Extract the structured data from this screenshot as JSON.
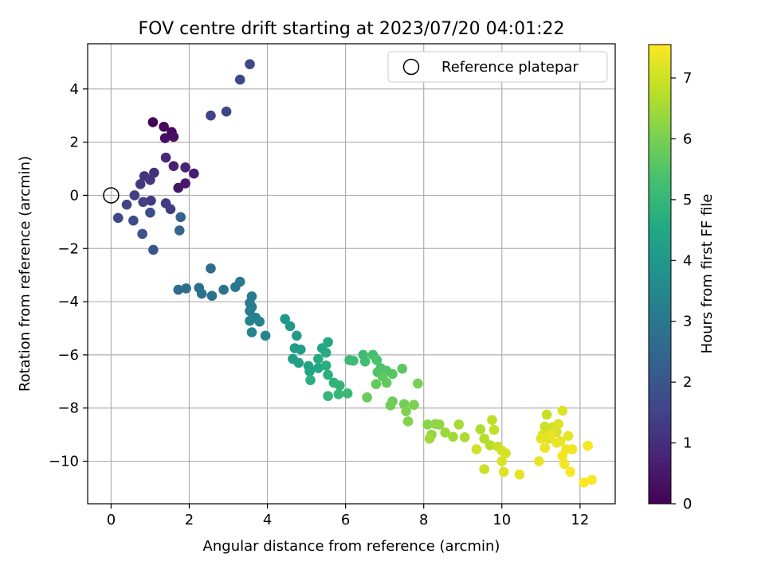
{
  "chart_data": {
    "type": "scatter",
    "title": "FOV centre drift starting at 2023/07/20 04:01:22",
    "xlabel": "Angular distance from reference (arcmin)",
    "ylabel": "Rotation from reference (arcmin)",
    "xlim": [
      -0.6,
      12.9
    ],
    "ylim": [
      -11.6,
      5.7
    ],
    "xticks": [
      0,
      2,
      4,
      6,
      8,
      10,
      12
    ],
    "yticks": [
      4,
      2,
      0,
      -2,
      -4,
      -6,
      -8,
      -10
    ],
    "xtick_labels": [
      "0",
      "2",
      "4",
      "6",
      "8",
      "10",
      "12"
    ],
    "ytick_labels": [
      "4",
      "2",
      "0",
      "−2",
      "−4",
      "−6",
      "−8",
      "−10"
    ],
    "grid": true,
    "legend": {
      "position": "top-right",
      "entries": [
        {
          "label": "Reference platepar",
          "marker": "open-circle",
          "x": 0,
          "y": 0
        }
      ]
    },
    "colorbar": {
      "label": "Hours from first FF file",
      "colormap": "viridis",
      "range": [
        0,
        7.55
      ],
      "ticks": [
        0,
        1,
        2,
        3,
        4,
        5,
        6,
        7
      ],
      "tick_labels": [
        "0",
        "1",
        "2",
        "3",
        "4",
        "5",
        "6",
        "7"
      ]
    },
    "points": [
      [
        1.07,
        2.75,
        0.05
      ],
      [
        1.35,
        2.58,
        0.15
      ],
      [
        1.55,
        2.38,
        0.2
      ],
      [
        1.6,
        2.2,
        0.3
      ],
      [
        1.38,
        2.15,
        0.25
      ],
      [
        1.72,
        0.28,
        0.4
      ],
      [
        1.9,
        0.45,
        0.5
      ],
      [
        2.12,
        0.82,
        0.6
      ],
      [
        1.6,
        1.1,
        0.7
      ],
      [
        1.9,
        1.05,
        0.8
      ],
      [
        1.4,
        1.42,
        0.9
      ],
      [
        1.1,
        0.85,
        1.0
      ],
      [
        0.85,
        0.72,
        1.1
      ],
      [
        1.0,
        0.58,
        1.15
      ],
      [
        0.75,
        0.42,
        1.2
      ],
      [
        1.02,
        -0.2,
        1.25
      ],
      [
        1.4,
        -0.3,
        1.3
      ],
      [
        1.52,
        -0.52,
        1.35
      ],
      [
        0.6,
        0.0,
        1.4
      ],
      [
        0.82,
        -0.25,
        1.45
      ],
      [
        0.4,
        -0.35,
        1.5
      ],
      [
        0.18,
        -0.85,
        1.6
      ],
      [
        0.57,
        -0.95,
        1.7
      ],
      [
        1.0,
        -0.65,
        1.8
      ],
      [
        0.8,
        -1.45,
        1.9
      ],
      [
        1.08,
        -2.05,
        2.0
      ],
      [
        2.55,
        3.0,
        1.5
      ],
      [
        2.95,
        3.15,
        1.55
      ],
      [
        3.3,
        4.35,
        1.6
      ],
      [
        3.55,
        4.93,
        1.65
      ],
      [
        1.78,
        -0.82,
        2.4
      ],
      [
        1.75,
        -1.32,
        2.5
      ],
      [
        2.55,
        -2.75,
        2.6
      ],
      [
        1.72,
        -3.55,
        2.65
      ],
      [
        1.92,
        -3.5,
        2.7
      ],
      [
        2.25,
        -3.48,
        2.75
      ],
      [
        2.32,
        -3.7,
        2.8
      ],
      [
        2.58,
        -3.78,
        2.85
      ],
      [
        2.88,
        -3.55,
        2.9
      ],
      [
        3.18,
        -3.45,
        2.95
      ],
      [
        3.3,
        -3.25,
        3.0
      ],
      [
        3.6,
        -3.8,
        3.05
      ],
      [
        3.55,
        -4.05,
        3.1
      ],
      [
        3.6,
        -4.2,
        3.15
      ],
      [
        3.55,
        -4.35,
        3.2
      ],
      [
        3.7,
        -4.6,
        3.25
      ],
      [
        3.8,
        -4.75,
        3.3
      ],
      [
        3.55,
        -4.72,
        3.35
      ],
      [
        3.6,
        -5.15,
        3.4
      ],
      [
        3.95,
        -5.28,
        3.45
      ],
      [
        4.45,
        -4.65,
        4.0
      ],
      [
        4.58,
        -4.92,
        4.05
      ],
      [
        4.75,
        -5.28,
        4.1
      ],
      [
        4.7,
        -5.75,
        4.15
      ],
      [
        4.85,
        -5.8,
        4.2
      ],
      [
        4.65,
        -6.15,
        4.25
      ],
      [
        4.8,
        -6.3,
        4.3
      ],
      [
        5.05,
        -6.42,
        4.35
      ],
      [
        5.08,
        -6.62,
        4.4
      ],
      [
        5.3,
        -6.5,
        4.45
      ],
      [
        5.4,
        -5.75,
        4.5
      ],
      [
        5.55,
        -5.52,
        4.55
      ],
      [
        5.5,
        -5.92,
        4.6
      ],
      [
        5.3,
        -6.15,
        4.65
      ],
      [
        5.5,
        -6.4,
        4.7
      ],
      [
        5.55,
        -6.75,
        4.75
      ],
      [
        5.1,
        -6.95,
        4.8
      ],
      [
        5.7,
        -7.05,
        4.85
      ],
      [
        5.85,
        -7.15,
        4.9
      ],
      [
        5.55,
        -7.55,
        4.95
      ],
      [
        5.82,
        -7.48,
        5.0
      ],
      [
        6.05,
        -7.45,
        5.05
      ],
      [
        6.1,
        -6.2,
        5.1
      ],
      [
        6.2,
        -6.22,
        5.15
      ],
      [
        6.45,
        -6.0,
        5.2
      ],
      [
        6.5,
        -6.25,
        5.25
      ],
      [
        6.7,
        -6.0,
        5.3
      ],
      [
        6.8,
        -6.2,
        5.35
      ],
      [
        6.9,
        -6.5,
        5.4
      ],
      [
        6.82,
        -6.65,
        5.45
      ],
      [
        7.05,
        -6.6,
        5.5
      ],
      [
        7.2,
        -6.72,
        5.55
      ],
      [
        7.45,
        -6.52,
        5.6
      ],
      [
        6.95,
        -6.82,
        5.65
      ],
      [
        7.05,
        -7.05,
        5.7
      ],
      [
        6.78,
        -7.1,
        5.75
      ],
      [
        6.55,
        -7.6,
        5.8
      ],
      [
        7.2,
        -7.75,
        5.85
      ],
      [
        7.15,
        -7.9,
        5.9
      ],
      [
        7.5,
        -7.85,
        5.95
      ],
      [
        7.85,
        -7.08,
        6.0
      ],
      [
        7.75,
        -7.88,
        6.05
      ],
      [
        7.55,
        -8.12,
        6.1
      ],
      [
        7.6,
        -8.5,
        6.15
      ],
      [
        8.1,
        -8.62,
        6.2
      ],
      [
        8.3,
        -8.6,
        6.25
      ],
      [
        8.4,
        -8.62,
        6.3
      ],
      [
        8.2,
        -9.0,
        6.35
      ],
      [
        8.55,
        -8.92,
        6.4
      ],
      [
        8.15,
        -9.15,
        6.45
      ],
      [
        8.75,
        -9.08,
        6.5
      ],
      [
        8.9,
        -8.62,
        6.55
      ],
      [
        9.05,
        -9.1,
        6.6
      ],
      [
        9.45,
        -8.8,
        6.65
      ],
      [
        9.55,
        -9.15,
        6.7
      ],
      [
        9.7,
        -9.4,
        6.75
      ],
      [
        9.75,
        -8.45,
        6.8
      ],
      [
        9.8,
        -8.82,
        6.85
      ],
      [
        9.9,
        -9.45,
        6.9
      ],
      [
        9.55,
        -10.3,
        6.95
      ],
      [
        9.35,
        -9.55,
        7.0
      ],
      [
        10.0,
        -9.6,
        7.05
      ],
      [
        10.1,
        -9.7,
        7.1
      ],
      [
        10.0,
        -10.0,
        7.15
      ],
      [
        10.05,
        -10.4,
        7.2
      ],
      [
        10.45,
        -10.5,
        7.25
      ],
      [
        10.95,
        -10.0,
        7.3
      ],
      [
        11.15,
        -8.25,
        6.9
      ],
      [
        11.1,
        -8.7,
        6.95
      ],
      [
        11.3,
        -8.72,
        7.0
      ],
      [
        11.05,
        -9.0,
        7.05
      ],
      [
        11.4,
        -8.9,
        7.1
      ],
      [
        11.55,
        -8.1,
        7.15
      ],
      [
        11.2,
        -9.15,
        7.2
      ],
      [
        11.5,
        -9.25,
        7.25
      ],
      [
        11.7,
        -9.05,
        7.3
      ],
      [
        11.1,
        -9.5,
        7.35
      ],
      [
        11.4,
        -9.3,
        7.35
      ],
      [
        11.65,
        -9.55,
        7.4
      ],
      [
        11.8,
        -9.55,
        7.4
      ],
      [
        11.55,
        -9.8,
        7.45
      ],
      [
        11.6,
        -10.1,
        7.45
      ],
      [
        11.75,
        -10.4,
        7.5
      ],
      [
        12.2,
        -9.42,
        7.5
      ],
      [
        12.1,
        -10.8,
        7.55
      ],
      [
        12.3,
        -10.7,
        7.55
      ],
      [
        11.25,
        -9.0,
        7.3
      ],
      [
        11.0,
        -9.15,
        7.25
      ],
      [
        11.45,
        -8.6,
        7.2
      ]
    ]
  }
}
